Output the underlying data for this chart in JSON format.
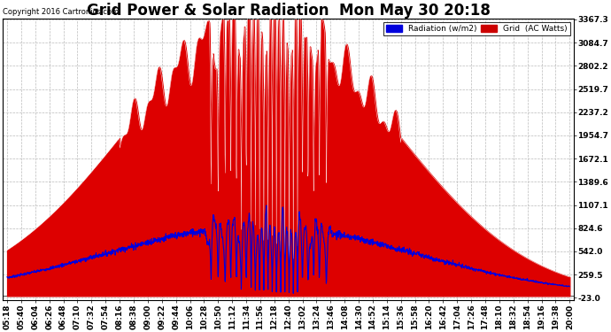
{
  "title": "Grid Power & Solar Radiation  Mon May 30 20:18",
  "copyright": "Copyright 2016 Cartronics.com",
  "legend_radiation": "Radiation (w/m2)",
  "legend_grid": "Grid  (AC Watts)",
  "yticks": [
    -23.0,
    259.5,
    542.0,
    824.6,
    1107.1,
    1389.6,
    1672.1,
    1954.7,
    2237.2,
    2519.7,
    2802.2,
    3084.7,
    3367.3
  ],
  "ymin": -23.0,
  "ymax": 3367.3,
  "bg_color": "#ffffff",
  "plot_bg_color": "#ffffff",
  "grid_color": "#bbbbbb",
  "radiation_color": "#0000dd",
  "grid_power_color": "#cc0000",
  "grid_power_fill": "#dd0000",
  "title_fontsize": 12,
  "tick_fontsize": 6.5,
  "xtick_labels": [
    "05:18",
    "05:40",
    "06:04",
    "06:26",
    "06:48",
    "07:10",
    "07:32",
    "07:54",
    "08:16",
    "08:38",
    "09:00",
    "09:22",
    "09:44",
    "10:06",
    "10:28",
    "10:50",
    "11:12",
    "11:34",
    "11:56",
    "12:18",
    "12:40",
    "13:02",
    "13:24",
    "13:46",
    "14:08",
    "14:30",
    "14:52",
    "15:14",
    "15:36",
    "15:58",
    "16:20",
    "16:42",
    "17:04",
    "17:26",
    "17:48",
    "18:10",
    "18:32",
    "18:54",
    "19:16",
    "19:38",
    "20:00"
  ]
}
